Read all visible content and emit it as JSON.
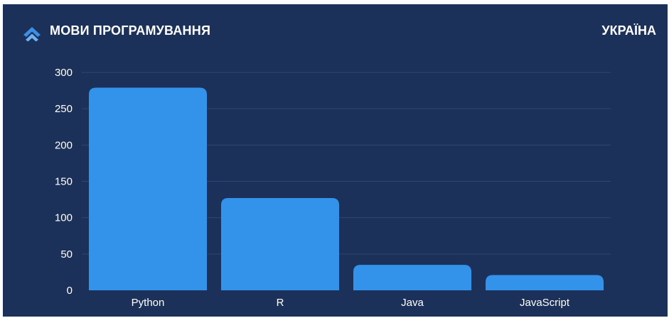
{
  "header": {
    "title": "МОВИ ПРОГРАМУВАННЯ",
    "region": "УКРАЇНА",
    "logo_icon": "chevron-up-logo-icon"
  },
  "colors": {
    "background": "#1b3159",
    "bar": "#3393ea",
    "logo": "#3c8ee4",
    "grid": "#2e4873",
    "text": "#ffffff"
  },
  "chart_data": {
    "type": "bar",
    "categories": [
      "Python",
      "R",
      "Java",
      "JavaScript"
    ],
    "values": [
      279,
      127,
      35,
      21
    ],
    "ylim": [
      0,
      300
    ],
    "yticks": [
      0,
      50,
      100,
      150,
      200,
      250,
      300
    ],
    "grid": true,
    "legend": "none"
  }
}
